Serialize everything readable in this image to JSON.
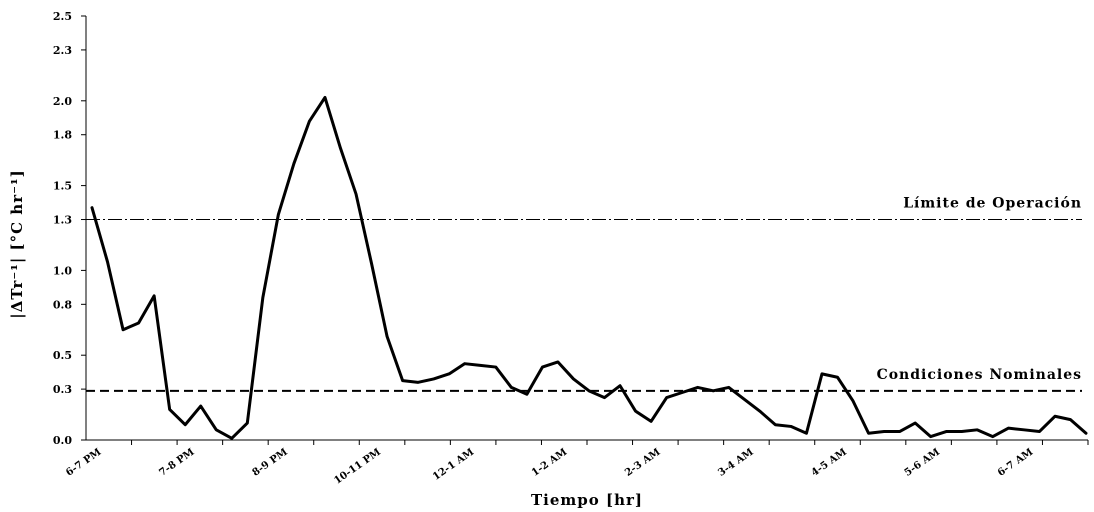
{
  "chart_data": {
    "type": "line",
    "xlabel": "Tiempo [hr]",
    "ylabel": "|ΔTr⁻¹| [°C hr⁻¹]",
    "ylim": [
      0,
      2.5
    ],
    "y_ticks": [
      0.0,
      0.3,
      0.5,
      0.8,
      1.0,
      1.3,
      1.5,
      1.8,
      2.0,
      2.3,
      2.5
    ],
    "y_tick_labels": [
      "0.0",
      "0.3",
      "0.5",
      "0.8",
      "1.0",
      "1.3",
      "1.5",
      "1.8",
      "2.0",
      "2.3",
      "2.5"
    ],
    "x_tick_labels": [
      "6-7 PM",
      "7-8 PM",
      "8-9 PM",
      "10-11 PM",
      "12-1 AM",
      "1-2 AM",
      "2-3 AM",
      "3-4 AM",
      "4-5 AM",
      "5-6 AM",
      "6-7 AM"
    ],
    "x_tick_index": [
      0,
      6,
      12,
      18,
      24,
      30,
      36,
      42,
      48,
      54,
      60
    ],
    "grid": false,
    "series": [
      {
        "values": [
          1.37,
          1.05,
          0.65,
          0.69,
          0.85,
          0.18,
          0.09,
          0.2,
          0.06,
          0.01,
          0.1,
          0.84,
          1.33,
          1.63,
          1.88,
          2.02,
          1.72,
          1.45,
          1.04,
          0.61,
          0.35,
          0.34,
          0.36,
          0.39,
          0.45,
          0.44,
          0.43,
          0.31,
          0.27,
          0.43,
          0.46,
          0.36,
          0.29,
          0.25,
          0.32,
          0.17,
          0.11,
          0.25,
          0.28,
          0.31,
          0.29,
          0.31,
          0.24,
          0.17,
          0.09,
          0.08,
          0.04,
          0.39,
          0.37,
          0.23,
          0.04,
          0.05,
          0.05,
          0.1,
          0.02,
          0.05,
          0.05,
          0.06,
          0.02,
          0.07,
          0.06,
          0.05,
          0.14,
          0.12,
          0.04
        ]
      }
    ],
    "reference_lines": [
      {
        "label": "Límite de Operación",
        "value": 1.3,
        "style": "dashdot"
      },
      {
        "label": "Condiciones Nominales",
        "value": 0.29,
        "style": "dashed"
      }
    ]
  }
}
